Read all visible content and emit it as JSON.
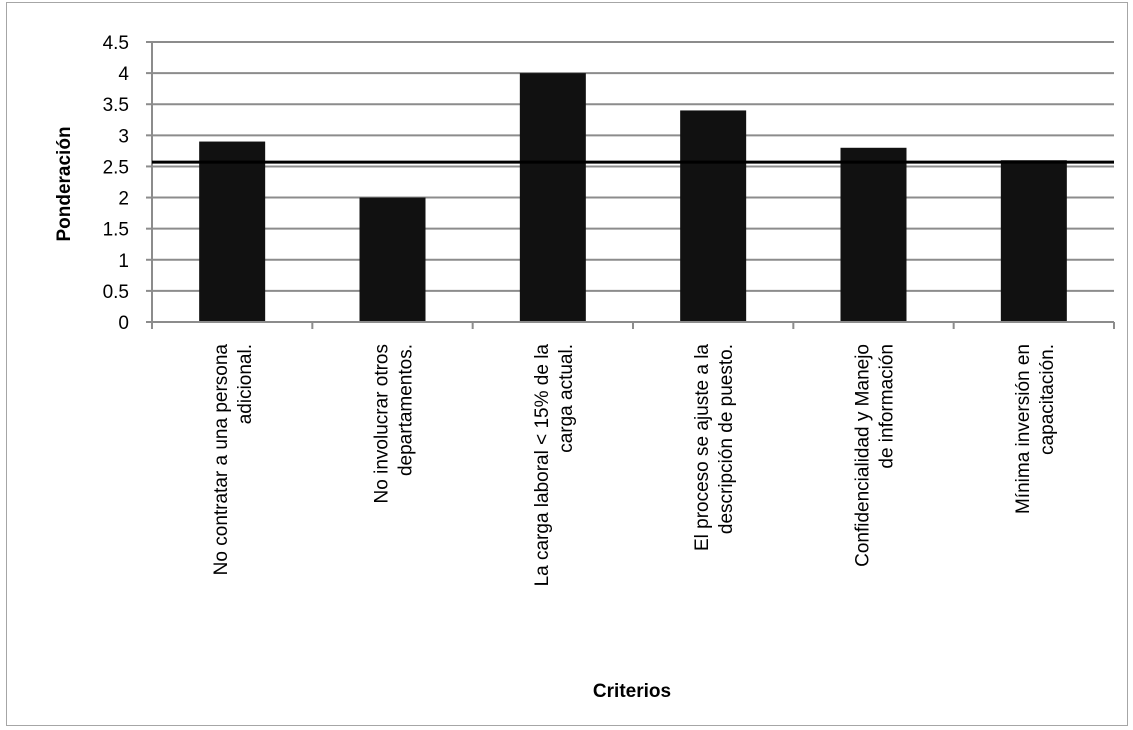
{
  "chart_data": {
    "type": "bar",
    "title": "",
    "xlabel": "Criterios",
    "ylabel": "Ponderación",
    "ylim": [
      0,
      4.5
    ],
    "yticks": [
      "0",
      "0.5",
      "1",
      "1.5",
      "2",
      "2.5",
      "3",
      "3.5",
      "4",
      "4.5"
    ],
    "grid": true,
    "categories": [
      [
        "No contratar a una persona",
        "adicional."
      ],
      [
        "No involucrar otros",
        "departamentos."
      ],
      [
        "La carga laboral < 15% de la",
        "carga actual."
      ],
      [
        "El proceso se ajuste a la",
        "descripción de puesto."
      ],
      [
        "Confidencialidad y Manejo",
        "de información"
      ],
      [
        "Mínima inversión en",
        "capacitación."
      ]
    ],
    "values": [
      2.9,
      2.0,
      4.0,
      3.4,
      2.8,
      2.6
    ],
    "reference_line": 2.57,
    "colors": {
      "bar": "#111111",
      "grid": "#8c8c8c",
      "reference": "#000000"
    }
  }
}
